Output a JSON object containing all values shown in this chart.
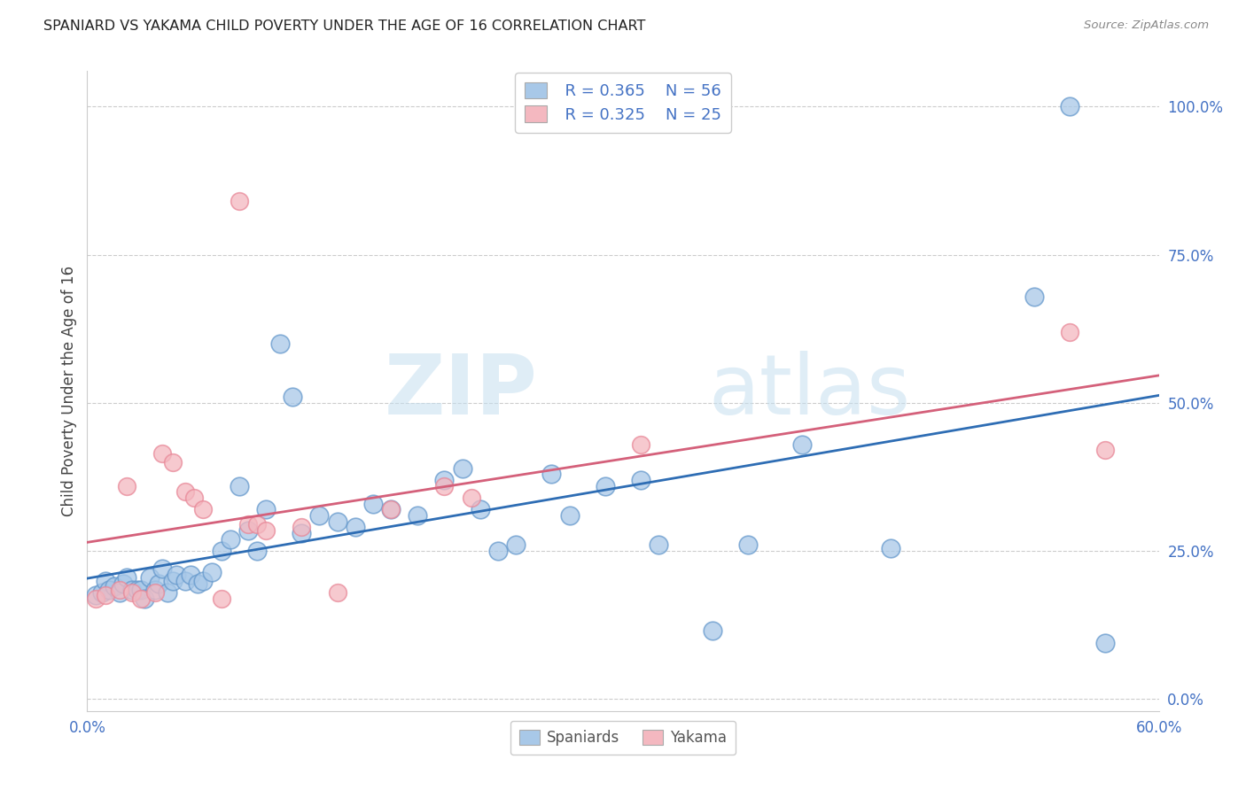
{
  "title": "SPANIARD VS YAKAMA CHILD POVERTY UNDER THE AGE OF 16 CORRELATION CHART",
  "source": "Source: ZipAtlas.com",
  "ylabel": "Child Poverty Under the Age of 16",
  "xlim": [
    0.0,
    0.6
  ],
  "ylim": [
    -0.02,
    1.06
  ],
  "yticks": [
    0.0,
    0.25,
    0.5,
    0.75,
    1.0
  ],
  "ytick_labels": [
    "0.0%",
    "25.0%",
    "50.0%",
    "75.0%",
    "100.0%"
  ],
  "xticks": [
    0.0,
    0.1,
    0.2,
    0.3,
    0.4,
    0.5,
    0.6
  ],
  "xtick_labels": [
    "0.0%",
    "",
    "",
    "",
    "",
    "",
    "60.0%"
  ],
  "legend_blue_r": "R = 0.365",
  "legend_blue_n": "N = 56",
  "legend_pink_r": "R = 0.325",
  "legend_pink_n": "N = 25",
  "watermark_zip": "ZIP",
  "watermark_atlas": "atlas",
  "blue_color": "#a8c8e8",
  "blue_edge_color": "#6699cc",
  "pink_color": "#f4b8c0",
  "pink_edge_color": "#e88898",
  "blue_line_color": "#2e6db4",
  "pink_line_color": "#d4607a",
  "axis_tick_color": "#4472c4",
  "grid_color": "#cccccc",
  "title_color": "#222222",
  "ylabel_color": "#444444",
  "source_color": "#888888",
  "spaniards_x": [
    0.005,
    0.008,
    0.01,
    0.012,
    0.015,
    0.018,
    0.02,
    0.022,
    0.025,
    0.028,
    0.03,
    0.032,
    0.035,
    0.038,
    0.04,
    0.042,
    0.045,
    0.048,
    0.05,
    0.055,
    0.058,
    0.062,
    0.065,
    0.07,
    0.075,
    0.08,
    0.085,
    0.09,
    0.095,
    0.1,
    0.108,
    0.115,
    0.12,
    0.13,
    0.14,
    0.15,
    0.16,
    0.17,
    0.185,
    0.2,
    0.21,
    0.22,
    0.23,
    0.24,
    0.26,
    0.27,
    0.29,
    0.31,
    0.32,
    0.35,
    0.37,
    0.4,
    0.45,
    0.53,
    0.55,
    0.57
  ],
  "spaniards_y": [
    0.175,
    0.18,
    0.2,
    0.185,
    0.19,
    0.18,
    0.195,
    0.205,
    0.185,
    0.185,
    0.185,
    0.17,
    0.205,
    0.185,
    0.195,
    0.22,
    0.18,
    0.2,
    0.21,
    0.2,
    0.21,
    0.195,
    0.2,
    0.215,
    0.25,
    0.27,
    0.36,
    0.285,
    0.25,
    0.32,
    0.6,
    0.51,
    0.28,
    0.31,
    0.3,
    0.29,
    0.33,
    0.32,
    0.31,
    0.37,
    0.39,
    0.32,
    0.25,
    0.26,
    0.38,
    0.31,
    0.36,
    0.37,
    0.26,
    0.115,
    0.26,
    0.43,
    0.255,
    0.68,
    1.0,
    0.095
  ],
  "yakama_x": [
    0.005,
    0.01,
    0.018,
    0.022,
    0.025,
    0.03,
    0.038,
    0.042,
    0.048,
    0.055,
    0.06,
    0.065,
    0.075,
    0.085,
    0.09,
    0.095,
    0.1,
    0.12,
    0.14,
    0.17,
    0.2,
    0.215,
    0.31,
    0.55,
    0.57
  ],
  "yakama_y": [
    0.17,
    0.175,
    0.185,
    0.36,
    0.18,
    0.17,
    0.18,
    0.415,
    0.4,
    0.35,
    0.34,
    0.32,
    0.17,
    0.84,
    0.295,
    0.295,
    0.285,
    0.29,
    0.18,
    0.32,
    0.36,
    0.34,
    0.43,
    0.62,
    0.42
  ]
}
